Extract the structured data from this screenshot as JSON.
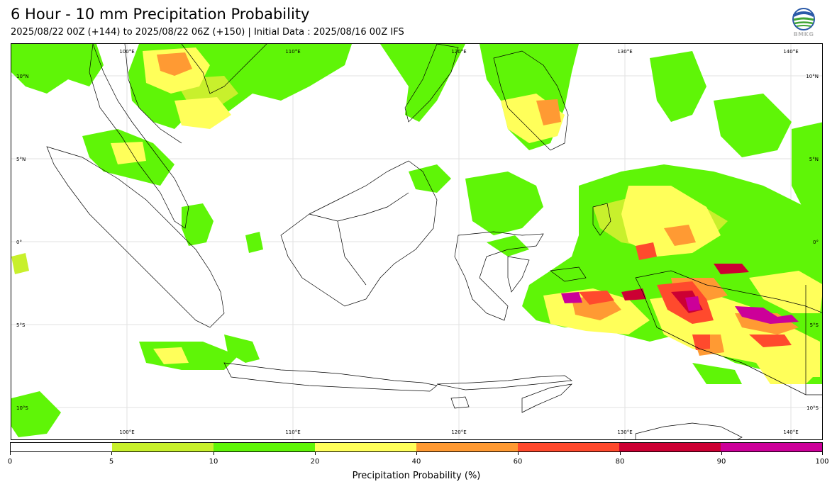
{
  "header": {
    "title": "6 Hour - 10 mm Precipitation Probability",
    "subtitle": "2025/08/22 00Z (+144) to 2025/08/22 06Z (+150) | Initial Data : 2025/08/16 00Z IFS"
  },
  "logo": {
    "text": "BMKG",
    "icon": "bmkg-globe-logo"
  },
  "map": {
    "lon_labels_top": [
      "100°E",
      "110°E",
      "120°E",
      "130°E",
      "140°E"
    ],
    "lon_labels_bottom": [
      "100°E",
      "110°E",
      "120°E",
      "130°E",
      "140°E"
    ],
    "lat_labels_left": [
      "10°N",
      "5°N",
      "0°",
      "5°S",
      "10°S"
    ],
    "lat_labels_right": [
      "10°N",
      "5°N",
      "0°",
      "5°S",
      "10°S"
    ]
  },
  "colorbar": {
    "label": "Precipitation Probability (%)",
    "ticks": [
      "0",
      "5",
      "10",
      "20",
      "40",
      "60",
      "80",
      "90",
      "100"
    ],
    "colors": [
      "#ffffff",
      "#c8f02c",
      "#5ff507",
      "#ffff5a",
      "#ff9a33",
      "#ff4a2d",
      "#cc0033",
      "#cc0099"
    ]
  }
}
